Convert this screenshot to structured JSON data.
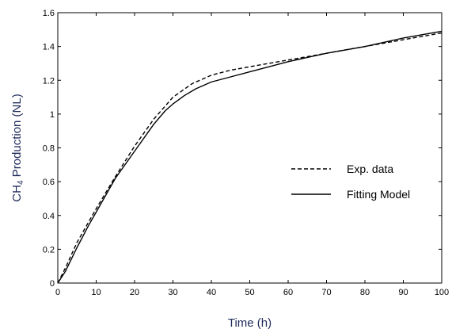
{
  "chart_data": {
    "type": "line",
    "title": "",
    "xlabel": "Time (h)",
    "ylabel_main": "CH",
    "ylabel_sub": "4",
    "ylabel_rest": " Production (NL)",
    "xlim": [
      0,
      100
    ],
    "ylim": [
      0,
      1.6
    ],
    "x_ticks": [
      "0",
      "10",
      "20",
      "30",
      "40",
      "50",
      "60",
      "70",
      "80",
      "90",
      "100"
    ],
    "y_ticks": [
      "0",
      "0.2",
      "0.4",
      "0.6",
      "0.8",
      "1",
      "1.2",
      "1.4",
      "1.6"
    ],
    "grid": false,
    "legend_position": "right-middle",
    "series": [
      {
        "name": "Exp. data",
        "line_style": "dashed",
        "color": "#000000",
        "x": [
          0,
          2,
          5,
          8,
          10,
          15,
          20,
          25,
          30,
          35,
          40,
          45,
          50,
          55,
          60,
          70,
          80,
          90,
          100
        ],
        "y": [
          0,
          0.09,
          0.24,
          0.36,
          0.44,
          0.63,
          0.81,
          0.97,
          1.1,
          1.18,
          1.23,
          1.26,
          1.28,
          1.3,
          1.32,
          1.36,
          1.4,
          1.44,
          1.48
        ]
      },
      {
        "name": "Fitting Model",
        "line_style": "solid",
        "color": "#000000",
        "x": [
          0,
          2,
          5,
          8,
          10,
          15,
          20,
          25,
          28,
          30,
          33,
          36,
          40,
          45,
          50,
          55,
          60,
          70,
          80,
          90,
          100
        ],
        "y": [
          0,
          0.07,
          0.21,
          0.34,
          0.42,
          0.62,
          0.78,
          0.94,
          1.02,
          1.06,
          1.11,
          1.15,
          1.19,
          1.22,
          1.25,
          1.28,
          1.31,
          1.36,
          1.4,
          1.45,
          1.49
        ]
      }
    ]
  }
}
